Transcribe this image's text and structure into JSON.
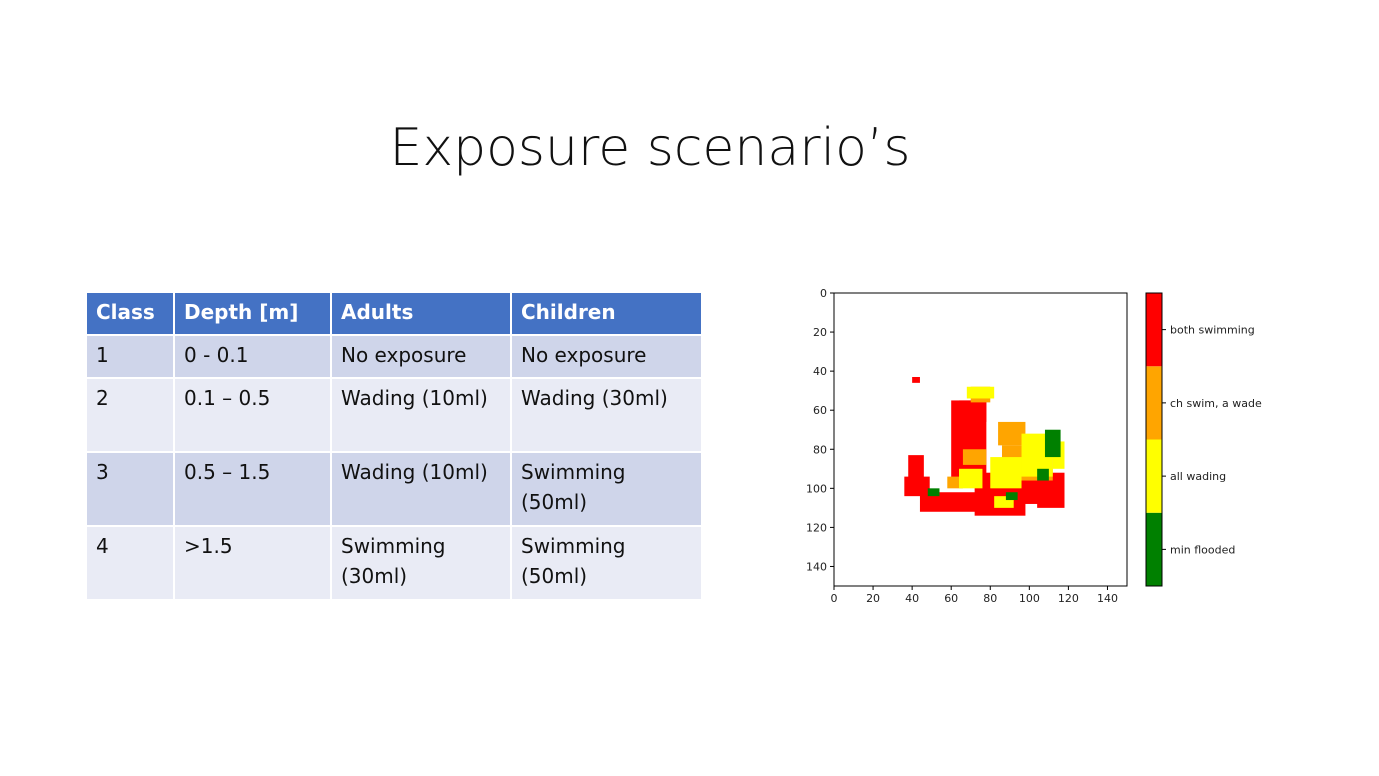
{
  "slide": {
    "title": "Exposure scenario’s"
  },
  "table": {
    "headers": [
      "Class",
      "Depth [m]",
      "Adults",
      "Children"
    ],
    "rows": [
      [
        "1",
        "0 - 0.1",
        "No exposure",
        "No exposure"
      ],
      [
        "2",
        "0.1 – 0.5",
        "Wading (10ml)",
        "Wading (30ml)"
      ],
      [
        "3",
        "0.5 – 1.5",
        "Wading (10ml)",
        "Swimming (50ml)"
      ],
      [
        "4",
        ">1.5",
        "Swimming (30ml)",
        "Swimming (50ml)"
      ]
    ]
  },
  "chart_data": {
    "type": "heatmap",
    "title": "",
    "xlabel": "",
    "ylabel": "",
    "xlim": [
      0,
      150
    ],
    "ylim": [
      150,
      0
    ],
    "x_ticks": [
      "0",
      "20",
      "40",
      "60",
      "80",
      "100",
      "120",
      "140"
    ],
    "y_ticks": [
      "0",
      "20",
      "40",
      "60",
      "80",
      "100",
      "120",
      "140"
    ],
    "grid": false,
    "colorbar": {
      "categories": [
        "min flooded",
        "all wading",
        "ch swim, a wade",
        "both swimming"
      ],
      "colors": [
        "#008000",
        "#ffff00",
        "#ffa500",
        "#ff0000"
      ]
    },
    "regions": [
      {
        "category": "both swimming",
        "x": [
          36,
          49
        ],
        "y": [
          94,
          104
        ]
      },
      {
        "category": "both swimming",
        "x": [
          44,
          76
        ],
        "y": [
          102,
          112
        ]
      },
      {
        "category": "both swimming",
        "x": [
          60,
          78
        ],
        "y": [
          55,
          96
        ]
      },
      {
        "category": "both swimming",
        "x": [
          72,
          98
        ],
        "y": [
          92,
          114
        ]
      },
      {
        "category": "both swimming",
        "x": [
          90,
          112
        ],
        "y": [
          96,
          108
        ]
      },
      {
        "category": "both swimming",
        "x": [
          104,
          118
        ],
        "y": [
          92,
          110
        ]
      },
      {
        "category": "both swimming",
        "x": [
          38,
          46
        ],
        "y": [
          83,
          96
        ]
      },
      {
        "category": "both swimming",
        "x": [
          40,
          44
        ],
        "y": [
          43,
          46
        ]
      },
      {
        "category": "both swimming",
        "x": [
          64,
          78
        ],
        "y": [
          55,
          66
        ]
      },
      {
        "category": "both swimming",
        "x": [
          80,
          92
        ],
        "y": [
          95,
          110
        ]
      },
      {
        "category": "ch swim, a wade",
        "x": [
          84,
          98
        ],
        "y": [
          66,
          78
        ]
      },
      {
        "category": "ch swim, a wade",
        "x": [
          86,
          112
        ],
        "y": [
          78,
          96
        ]
      },
      {
        "category": "ch swim, a wade",
        "x": [
          70,
          80
        ],
        "y": [
          48,
          56
        ]
      },
      {
        "category": "ch swim, a wade",
        "x": [
          58,
          66
        ],
        "y": [
          94,
          100
        ]
      },
      {
        "category": "ch swim, a wade",
        "x": [
          66,
          78
        ],
        "y": [
          80,
          88
        ]
      },
      {
        "category": "all wading",
        "x": [
          68,
          82
        ],
        "y": [
          48,
          54
        ]
      },
      {
        "category": "all wading",
        "x": [
          80,
          96
        ],
        "y": [
          84,
          100
        ]
      },
      {
        "category": "all wading",
        "x": [
          96,
          112
        ],
        "y": [
          72,
          94
        ]
      },
      {
        "category": "all wading",
        "x": [
          64,
          76
        ],
        "y": [
          90,
          100
        ]
      },
      {
        "category": "all wading",
        "x": [
          82,
          92
        ],
        "y": [
          104,
          110
        ]
      },
      {
        "category": "all wading",
        "x": [
          112,
          118
        ],
        "y": [
          76,
          90
        ]
      },
      {
        "category": "min flooded",
        "x": [
          108,
          116
        ],
        "y": [
          70,
          84
        ]
      },
      {
        "category": "min flooded",
        "x": [
          48,
          54
        ],
        "y": [
          100,
          104
        ]
      },
      {
        "category": "min flooded",
        "x": [
          88,
          94
        ],
        "y": [
          102,
          106
        ]
      },
      {
        "category": "min flooded",
        "x": [
          104,
          110
        ],
        "y": [
          90,
          96
        ]
      }
    ]
  }
}
